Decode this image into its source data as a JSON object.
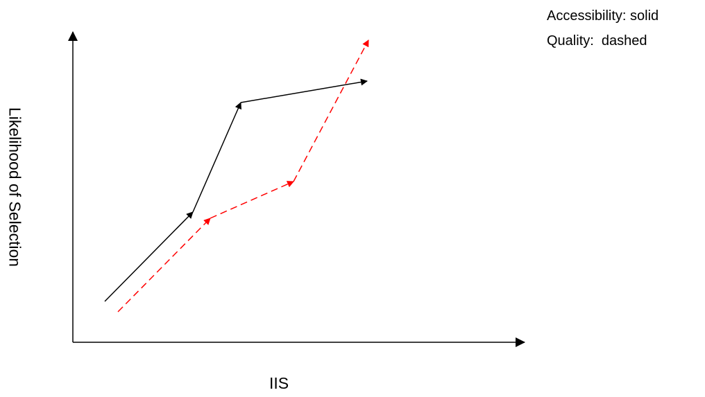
{
  "legend": {
    "solid_text": "Accessibility: solid",
    "dashed_text": "Quality:  dashed"
  },
  "axes": {
    "x_label": "IIS",
    "y_label": "Likelihood of Selection"
  },
  "colors": {
    "axis": "#000000",
    "accessibility": "#000000",
    "quality": "#ff0000",
    "background": "#ffffff"
  },
  "series": [
    {
      "name": "Accessibility",
      "style": "solid",
      "segments": 3,
      "arrowheads": 3
    },
    {
      "name": "Quality",
      "style": "dashed",
      "segments": 3,
      "arrowheads": 3
    }
  ]
}
